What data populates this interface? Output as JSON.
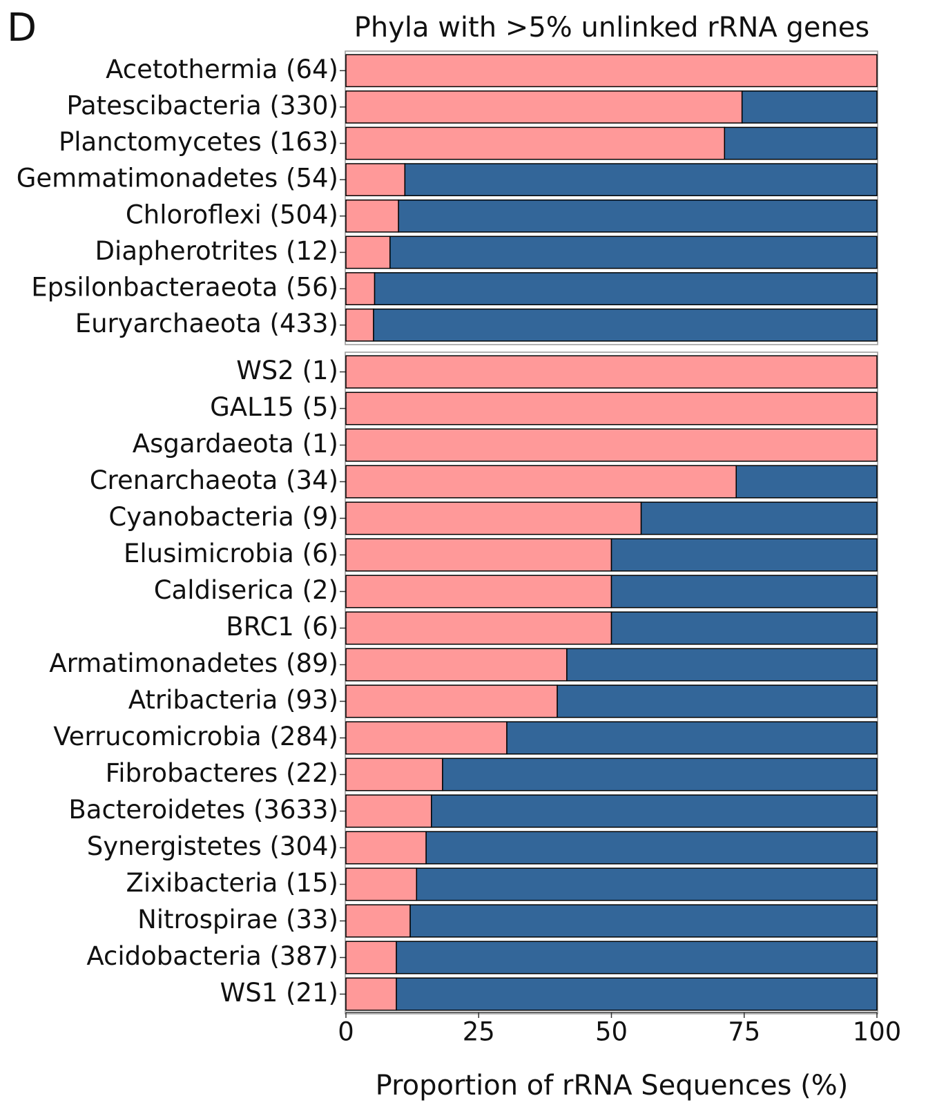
{
  "chart_data": [
    {
      "type": "bar",
      "orientation": "horizontal",
      "stacked": true,
      "panel_label": "D",
      "title": "Phyla with >5% unlinked rRNA genes",
      "categories": [
        "Acetothermia (64)",
        "Patescibacteria (330)",
        "Planctomycetes (163)",
        "Gemmatimonadetes (54)",
        "Chloroflexi (504)",
        "Diapherotrites (12)",
        "Epsilonbacteraeota (56)",
        "Euryarchaeota (433)"
      ],
      "series": [
        {
          "color": "#ff9999",
          "values": [
            100,
            74.6,
            71.3,
            11.1,
            9.9,
            8.3,
            5.4,
            5.2
          ]
        },
        {
          "color": "#336699",
          "values": [
            0,
            25.4,
            28.7,
            88.9,
            90.1,
            91.7,
            94.6,
            94.8
          ]
        }
      ],
      "xlim": [
        0,
        100
      ]
    },
    {
      "type": "bar",
      "orientation": "horizontal",
      "stacked": true,
      "categories": [
        "WS2 (1)",
        "GAL15 (5)",
        "Asgardaeota (1)",
        "Crenarchaeota (34)",
        "Cyanobacteria (9)",
        "Elusimicrobia (6)",
        "Caldiserica (2)",
        "BRC1 (6)",
        "Armatimonadetes (89)",
        "Atribacteria (93)",
        "Verrucomicrobia (284)",
        "Fibrobacteres (22)",
        "Bacteroidetes (3633)",
        "Synergistetes (304)",
        "Zixibacteria (15)",
        "Nitrospirae (33)",
        "Acidobacteria (387)",
        "WS1 (21)"
      ],
      "series": [
        {
          "color": "#ff9999",
          "values": [
            100,
            100,
            100,
            73.5,
            55.6,
            50,
            50,
            50,
            41.6,
            39.8,
            30.3,
            18.2,
            16.1,
            15.1,
            13.3,
            12.1,
            9.5,
            9.5
          ]
        },
        {
          "color": "#336699",
          "values": [
            0,
            0,
            0,
            26.5,
            44.4,
            50,
            50,
            50,
            58.4,
            60.2,
            69.7,
            81.8,
            83.9,
            84.9,
            86.7,
            87.9,
            90.5,
            90.5
          ]
        }
      ],
      "xlim": [
        0,
        100
      ],
      "xticks": [
        0,
        25,
        50,
        75,
        100
      ],
      "x_label": "Proportion of rRNA Sequences (%)"
    }
  ]
}
